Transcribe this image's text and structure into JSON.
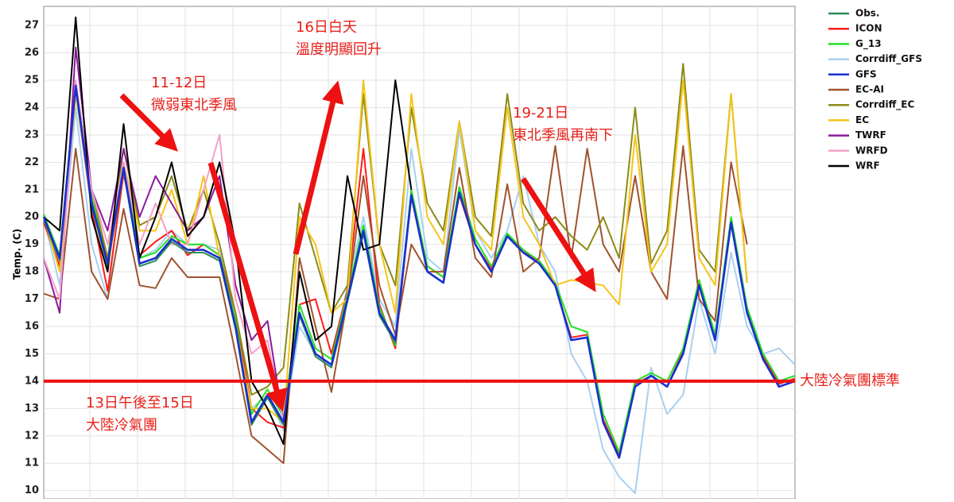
{
  "chart_data": {
    "type": "line",
    "y_label": "Temp. (C)",
    "categories": [
      null,
      null,
      null,
      null,
      null,
      null,
      null,
      null,
      null,
      null,
      null,
      null,
      null,
      null,
      null,
      null,
      null,
      null,
      null,
      null,
      null,
      null,
      null,
      null,
      null,
      null,
      null,
      null,
      null,
      null,
      null,
      null,
      null,
      null,
      null,
      null,
      null,
      null,
      null,
      null,
      null,
      null,
      null,
      null,
      null,
      null,
      null,
      null
    ],
    "ylim": [
      9.7,
      27.7
    ],
    "yticks": [
      10,
      11,
      12,
      13,
      14,
      15,
      16,
      17,
      18,
      19,
      20,
      21,
      22,
      23,
      24,
      25,
      26,
      27
    ],
    "grid": true,
    "legend": "upper right",
    "series": [
      {
        "name": "Obs.",
        "color": "#2e8b57",
        "values": [
          19.9,
          18.4,
          24.7,
          20.4,
          18.2,
          21.7,
          18.2,
          18.4,
          19.1,
          18.7,
          18.7,
          18.4,
          15.9,
          12.4,
          13.4,
          12.4,
          16.4,
          14.9,
          14.5,
          16.9,
          19.4,
          16.4,
          15.4,
          20.7,
          null,
          null,
          null,
          null,
          null,
          null,
          null,
          null,
          null,
          null,
          null,
          null,
          null,
          null,
          null,
          null,
          null,
          null,
          null,
          null,
          null,
          null,
          null,
          null
        ]
      },
      {
        "name": "ICON",
        "color": "#ff1a1a",
        "values": [
          19.8,
          18.2,
          24.6,
          20.3,
          17.3,
          21.6,
          18.6,
          19.1,
          19.5,
          18.6,
          19,
          18.6,
          16.5,
          13,
          12.5,
          12.3,
          16.8,
          17,
          15,
          17.3,
          22.5,
          16.8,
          15.2,
          20.8,
          18.2,
          17.8,
          20.8,
          19,
          18.1,
          19.3,
          18.8,
          18.3,
          17.5,
          15.6,
          15.7,
          12.6,
          11.3,
          13.9,
          14.2,
          13.8,
          15.1,
          17.6,
          15.6,
          19.9,
          16.6,
          14.9,
          13.9,
          14.1
        ]
      },
      {
        "name": "G_13",
        "color": "#22e022",
        "values": [
          20.1,
          18.6,
          24.9,
          20.7,
          18.4,
          22,
          18.5,
          18.7,
          19.3,
          19,
          19,
          18.6,
          16.2,
          12.8,
          13.7,
          12.7,
          16.8,
          15.2,
          14.8,
          17.2,
          19.7,
          16.7,
          15.3,
          21,
          18.2,
          17.8,
          21.1,
          19.2,
          18.2,
          19.4,
          18.8,
          18.4,
          17.6,
          16,
          15.8,
          12.8,
          11.4,
          14,
          14.3,
          14,
          15.2,
          17.7,
          15.7,
          20,
          16.7,
          15,
          14,
          14.2
        ]
      },
      {
        "name": "Corrdiff_GFS",
        "color": "#a8d0f0",
        "values": [
          20,
          17.5,
          24,
          19,
          17,
          22,
          18.5,
          18.8,
          19.5,
          19,
          19,
          18.8,
          16,
          13,
          13.5,
          12.2,
          16,
          15,
          14.5,
          17.5,
          20,
          17,
          16,
          22.5,
          18.5,
          18,
          23.2,
          19.5,
          18.5,
          19.5,
          21.5,
          19,
          18,
          15,
          14,
          11.5,
          10.5,
          9.9,
          14.5,
          12.8,
          13.5,
          17,
          15,
          18.7,
          16,
          15,
          15.2,
          14.6
        ]
      },
      {
        "name": "GFS",
        "color": "#1a2fd0",
        "values": [
          20,
          18.5,
          24.8,
          20.5,
          18.3,
          21.8,
          18.3,
          18.5,
          19.2,
          18.8,
          18.8,
          18.5,
          16,
          12.5,
          13.5,
          12.5,
          16.5,
          15,
          14.6,
          17,
          19.5,
          16.5,
          15.5,
          20.8,
          18,
          17.6,
          20.9,
          19,
          18,
          19.3,
          18.7,
          18.3,
          17.5,
          15.5,
          15.6,
          12.5,
          11.2,
          13.8,
          14.2,
          13.8,
          15,
          17.5,
          15.5,
          19.8,
          16.5,
          14.8,
          13.8,
          14
        ]
      },
      {
        "name": "EC-AI",
        "color": "#a0522d",
        "values": [
          17.2,
          17,
          22.5,
          18,
          17,
          20.3,
          17.5,
          17.4,
          18.5,
          17.8,
          17.8,
          17.8,
          15,
          12,
          11.5,
          11,
          18.5,
          16,
          13.6,
          17,
          21.5,
          17.5,
          15.7,
          19,
          18,
          18,
          21.8,
          18.5,
          17.8,
          21.2,
          18,
          18.5,
          22.6,
          18.5,
          22.5,
          19,
          18,
          21.5,
          18,
          17,
          22.6,
          17,
          16.2,
          22,
          19,
          null,
          null,
          null
        ]
      },
      {
        "name": "Corrdiff_EC",
        "color": "#8b8b1a",
        "values": [
          20,
          18.5,
          24.5,
          21,
          18.5,
          22.5,
          19.7,
          20,
          21.5,
          19.5,
          21,
          19,
          16.5,
          13.5,
          13.8,
          14.5,
          20.5,
          18.5,
          16.5,
          17.5,
          24.5,
          19,
          17.5,
          24,
          20.5,
          19.5,
          23.5,
          20,
          19.3,
          24.5,
          20.5,
          19.5,
          20,
          19.3,
          18.8,
          20,
          18.5,
          24,
          18.3,
          19.5,
          25.6,
          18.8,
          18,
          24.5,
          17.6,
          null,
          null,
          null
        ]
      },
      {
        "name": "EC",
        "color": "#f5c518",
        "values": [
          20,
          18,
          24.5,
          20.5,
          18,
          22,
          19.5,
          19.5,
          21,
          19,
          21.5,
          18.5,
          16,
          13,
          13,
          12.5,
          20,
          19,
          16.5,
          17,
          25,
          19,
          16.5,
          24.5,
          20,
          19,
          23.5,
          19.5,
          18.8,
          24,
          20,
          19,
          17.5,
          17.7,
          17.6,
          17.5,
          16.8,
          23,
          18,
          19,
          25,
          18.5,
          17.5,
          24.5,
          17.6,
          null,
          null,
          null
        ]
      },
      {
        "name": "TWRF",
        "color": "#8b1a9b",
        "values": [
          18.5,
          16.5,
          26.2,
          21,
          19.5,
          22.5,
          20,
          21.5,
          20.5,
          19.5,
          20,
          21.5,
          17.5,
          15.5,
          16.2,
          12.5,
          null,
          null,
          null,
          null,
          null,
          null,
          null,
          null,
          null,
          null,
          null,
          null,
          null,
          null,
          null,
          null,
          null,
          null,
          null,
          null,
          null,
          null,
          null,
          null,
          null,
          null,
          null,
          null,
          null,
          null,
          null,
          null
        ]
      },
      {
        "name": "WRFD",
        "color": "#f5a0c8",
        "values": [
          18.5,
          17,
          25,
          21,
          19,
          22,
          19,
          20.5,
          19,
          19,
          21,
          23,
          17,
          15,
          15.5,
          12.5,
          null,
          null,
          null,
          null,
          null,
          null,
          null,
          null,
          null,
          null,
          null,
          null,
          null,
          null,
          null,
          null,
          null,
          null,
          null,
          null,
          null,
          null,
          null,
          null,
          null,
          null,
          null,
          null,
          null,
          null,
          null,
          null
        ]
      },
      {
        "name": "WRF",
        "color": "#000000",
        "values": [
          20,
          19.5,
          27.3,
          20,
          18,
          23.4,
          18.5,
          20,
          22,
          19.3,
          20,
          22,
          19,
          14,
          13,
          11.7,
          18,
          15.5,
          16,
          21.5,
          18.8,
          19,
          25,
          21,
          null,
          null,
          null,
          null,
          null,
          null,
          null,
          null,
          null,
          null,
          null,
          null,
          null,
          null,
          null,
          null,
          null,
          null,
          null,
          null,
          null,
          null,
          null,
          null
        ]
      }
    ],
    "reference_line": {
      "value": 14,
      "label": "大陸冷氣團標準",
      "color": "#ee1111"
    },
    "annotations": [
      {
        "lines": [
          "11-12日",
          "微弱東北季風"
        ]
      },
      {
        "lines": [
          "16日白天",
          "溫度明顯回升"
        ]
      },
      {
        "lines": [
          "19-21日",
          "東北季風再南下"
        ]
      },
      {
        "lines": [
          "13日午後至15日",
          "大陸冷氣團"
        ]
      }
    ]
  }
}
